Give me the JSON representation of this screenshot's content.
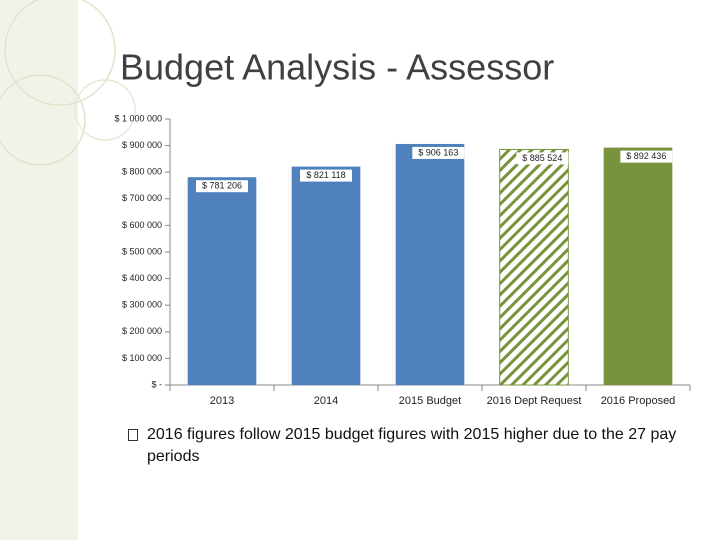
{
  "chart_data": {
    "type": "bar",
    "title": "Budget Analysis - Assessor",
    "categories": [
      "2013",
      "2014",
      "2015 Budget",
      "2016 Dept Request",
      "2016 Proposed"
    ],
    "values": [
      781206,
      821118,
      906163,
      885524,
      892436
    ],
    "value_labels": [
      "$ 781 206",
      "$ 821 118",
      "$ 906 163",
      "$ 885 524",
      "$ 892 436"
    ],
    "colors": [
      "#4f81bd",
      "#4f81bd",
      "#4f81bd",
      "#77933c",
      "#77933c"
    ],
    "hatched": [
      false,
      false,
      false,
      true,
      false
    ],
    "ylim": [
      0,
      1000000
    ],
    "yticks": [
      {
        "value": 0,
        "label": "$ -"
      },
      {
        "value": 100000,
        "label": "$ 100 000"
      },
      {
        "value": 200000,
        "label": "$ 200 000"
      },
      {
        "value": 300000,
        "label": "$ 300 000"
      },
      {
        "value": 400000,
        "label": "$ 400 000"
      },
      {
        "value": 500000,
        "label": "$ 500 000"
      },
      {
        "value": 600000,
        "label": "$ 600 000"
      },
      {
        "value": 700000,
        "label": "$ 700 000"
      },
      {
        "value": 800000,
        "label": "$ 800 000"
      },
      {
        "value": 900000,
        "label": "$ 900 000"
      },
      {
        "value": 1000000,
        "label": "$ 1 000 000"
      }
    ],
    "grid": false
  },
  "bullets": [
    "2016 figures follow 2015 budget figures with 2015 higher due to the 27 pay periods"
  ]
}
